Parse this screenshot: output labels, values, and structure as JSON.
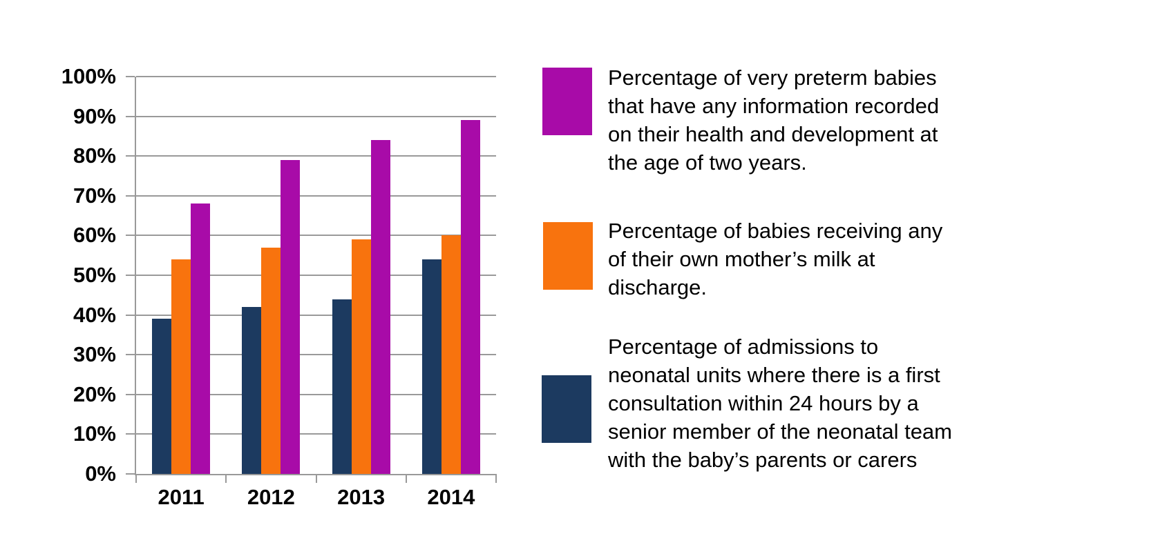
{
  "chart_data": {
    "type": "bar",
    "title": "",
    "xlabel": "",
    "ylabel": "",
    "categories": [
      "2011",
      "2012",
      "2013",
      "2014"
    ],
    "series": [
      {
        "id": "consultation-24h",
        "color": "#1C3A60",
        "values": [
          39,
          42,
          44,
          54
        ],
        "label": "Percentage of admissions to neonatal units where there is a first consultation within 24 hours by a senior member of the neonatal team with the baby’s parents or carers"
      },
      {
        "id": "mothers-milk",
        "color": "#F8730E",
        "values": [
          54,
          57,
          59,
          60
        ],
        "label": "Percentage of babies receiving any of their own mother’s milk at discharge."
      },
      {
        "id": "two-year-followup",
        "color": "#A80BA8",
        "values": [
          68,
          79,
          84,
          89
        ],
        "label": "Percentage of very preterm babies that have any information recorded on their health and development at the age of two years."
      }
    ],
    "ylim": [
      0,
      100
    ],
    "ytick_step": 10,
    "ytick_labels": [
      "0%",
      "10%",
      "20%",
      "30%",
      "40%",
      "50%",
      "60%",
      "70%",
      "80%",
      "90%",
      "100%"
    ],
    "grid": true,
    "legend_position": "right"
  },
  "legend": {
    "items": [
      {
        "series_id": "two-year-followup",
        "color": "#A80BA8",
        "lines": [
          "Percentage of very preterm babies",
          "that have any information recorded",
          "on their health and development at",
          "the age of two years."
        ]
      },
      {
        "series_id": "mothers-milk",
        "color": "#F8730E",
        "lines": [
          "Percentage of babies receiving any",
          "of their own mother’s milk at",
          "discharge."
        ]
      },
      {
        "series_id": "consultation-24h",
        "color": "#1C3A60",
        "lines": [
          "Percentage of admissions to",
          "neonatal units where there is a first",
          "consultation within 24 hours by a",
          "senior member of the neonatal team",
          "with the baby’s parents or carers"
        ]
      }
    ]
  },
  "style": {
    "grid_color": "#999999",
    "axis_color": "#999999",
    "text_color": "#000000",
    "background": "#FFFFFF"
  }
}
